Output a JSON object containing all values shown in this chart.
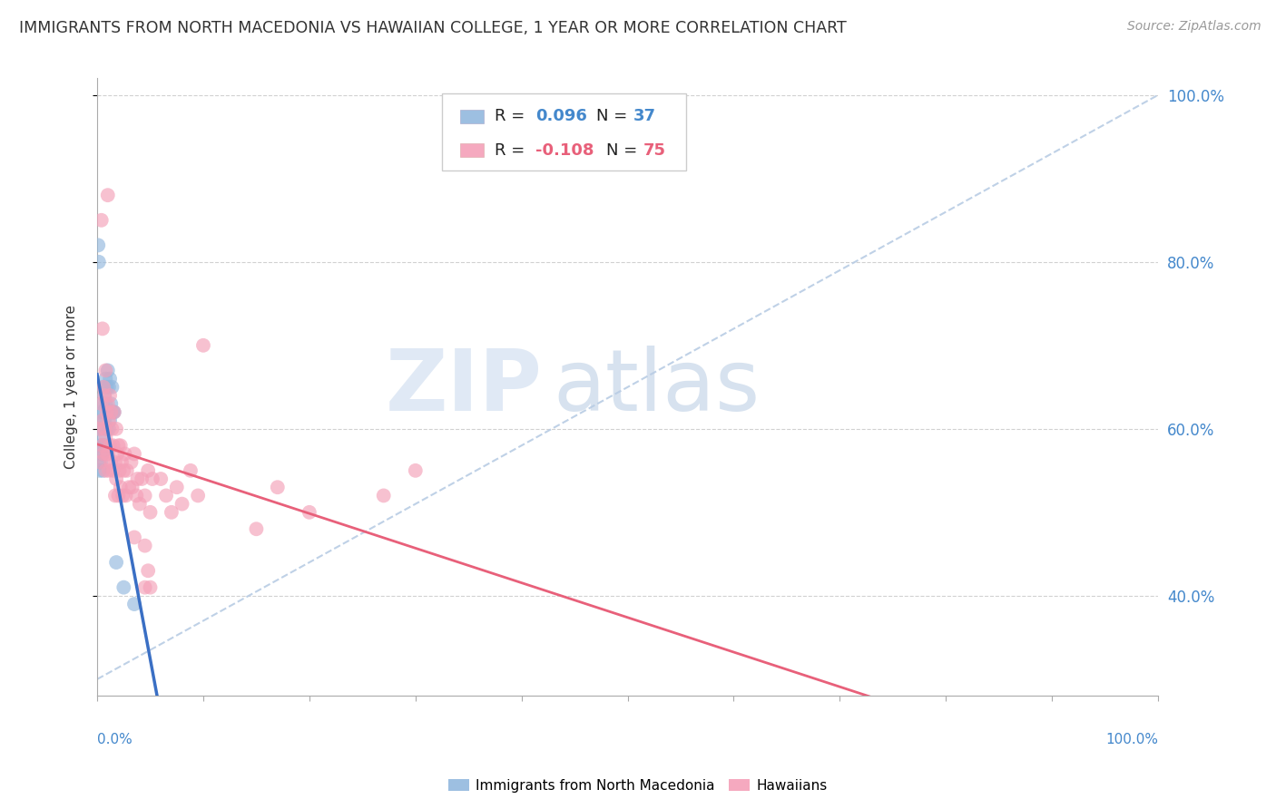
{
  "title": "IMMIGRANTS FROM NORTH MACEDONIA VS HAWAIIAN COLLEGE, 1 YEAR OR MORE CORRELATION CHART",
  "source": "Source: ZipAtlas.com",
  "ylabel": "College, 1 year or more",
  "legend_footer": [
    "Immigrants from North Macedonia",
    "Hawaiians"
  ],
  "blue_R": 0.096,
  "blue_N": 37,
  "pink_R": -0.108,
  "pink_N": 75,
  "blue_scatter_x": [
    0.2,
    0.3,
    0.3,
    0.4,
    0.4,
    0.5,
    0.5,
    0.5,
    0.6,
    0.6,
    0.6,
    0.7,
    0.7,
    0.7,
    0.8,
    0.8,
    0.9,
    0.9,
    1.0,
    1.0,
    1.1,
    1.1,
    1.2,
    1.2,
    1.3,
    1.4,
    1.5,
    1.6,
    1.8,
    0.1,
    0.15,
    0.25,
    0.35,
    0.45,
    0.55,
    2.5,
    3.5
  ],
  "blue_scatter_y": [
    0.56,
    0.6,
    0.58,
    0.62,
    0.59,
    0.63,
    0.61,
    0.57,
    0.65,
    0.62,
    0.58,
    0.64,
    0.61,
    0.58,
    0.66,
    0.63,
    0.65,
    0.6,
    0.67,
    0.62,
    0.65,
    0.6,
    0.66,
    0.61,
    0.63,
    0.65,
    0.62,
    0.62,
    0.44,
    0.82,
    0.8,
    0.55,
    0.56,
    0.57,
    0.55,
    0.41,
    0.39
  ],
  "pink_scatter_x": [
    0.2,
    0.3,
    0.4,
    0.5,
    0.5,
    0.6,
    0.6,
    0.7,
    0.7,
    0.8,
    0.8,
    0.9,
    0.9,
    1.0,
    1.0,
    1.1,
    1.1,
    1.2,
    1.2,
    1.3,
    1.3,
    1.4,
    1.5,
    1.5,
    1.6,
    1.7,
    1.7,
    1.8,
    1.8,
    1.9,
    2.0,
    2.0,
    2.1,
    2.2,
    2.2,
    2.3,
    2.4,
    2.5,
    2.6,
    2.7,
    2.8,
    3.0,
    3.2,
    3.3,
    3.5,
    3.7,
    3.8,
    4.0,
    4.2,
    4.5,
    4.8,
    5.0,
    5.2,
    6.0,
    6.5,
    7.0,
    7.5,
    8.0,
    8.8,
    9.5,
    10.0,
    0.4,
    0.8,
    1.0,
    4.5,
    0.5,
    3.5,
    4.5,
    4.8,
    5.0,
    30.0,
    27.0,
    20.0,
    17.0,
    15.0
  ],
  "pink_scatter_y": [
    0.6,
    0.56,
    0.63,
    0.58,
    0.61,
    0.57,
    0.65,
    0.6,
    0.64,
    0.59,
    0.55,
    0.62,
    0.57,
    0.63,
    0.57,
    0.61,
    0.55,
    0.64,
    0.58,
    0.62,
    0.56,
    0.6,
    0.55,
    0.58,
    0.62,
    0.56,
    0.52,
    0.6,
    0.54,
    0.57,
    0.58,
    0.52,
    0.55,
    0.58,
    0.53,
    0.56,
    0.52,
    0.55,
    0.57,
    0.52,
    0.55,
    0.53,
    0.56,
    0.53,
    0.57,
    0.52,
    0.54,
    0.51,
    0.54,
    0.52,
    0.55,
    0.5,
    0.54,
    0.54,
    0.52,
    0.5,
    0.53,
    0.51,
    0.55,
    0.52,
    0.7,
    0.85,
    0.67,
    0.88,
    0.41,
    0.72,
    0.47,
    0.46,
    0.43,
    0.41,
    0.55,
    0.52,
    0.5,
    0.53,
    0.48
  ],
  "xlim": [
    0,
    100
  ],
  "ylim": [
    0.28,
    1.02
  ],
  "watermark_zip": "ZIP",
  "watermark_atlas": "atlas",
  "background_color": "#ffffff",
  "grid_color": "#cccccc",
  "blue_color": "#92b8de",
  "pink_color": "#f4a0b8",
  "blue_line_color": "#3a6fc4",
  "pink_line_color": "#e8607a",
  "dashed_line_color": "#b8cce4",
  "right_axis_color": "#4488cc",
  "blue_legend_color": "#4488cc",
  "pink_legend_color": "#e8607a"
}
